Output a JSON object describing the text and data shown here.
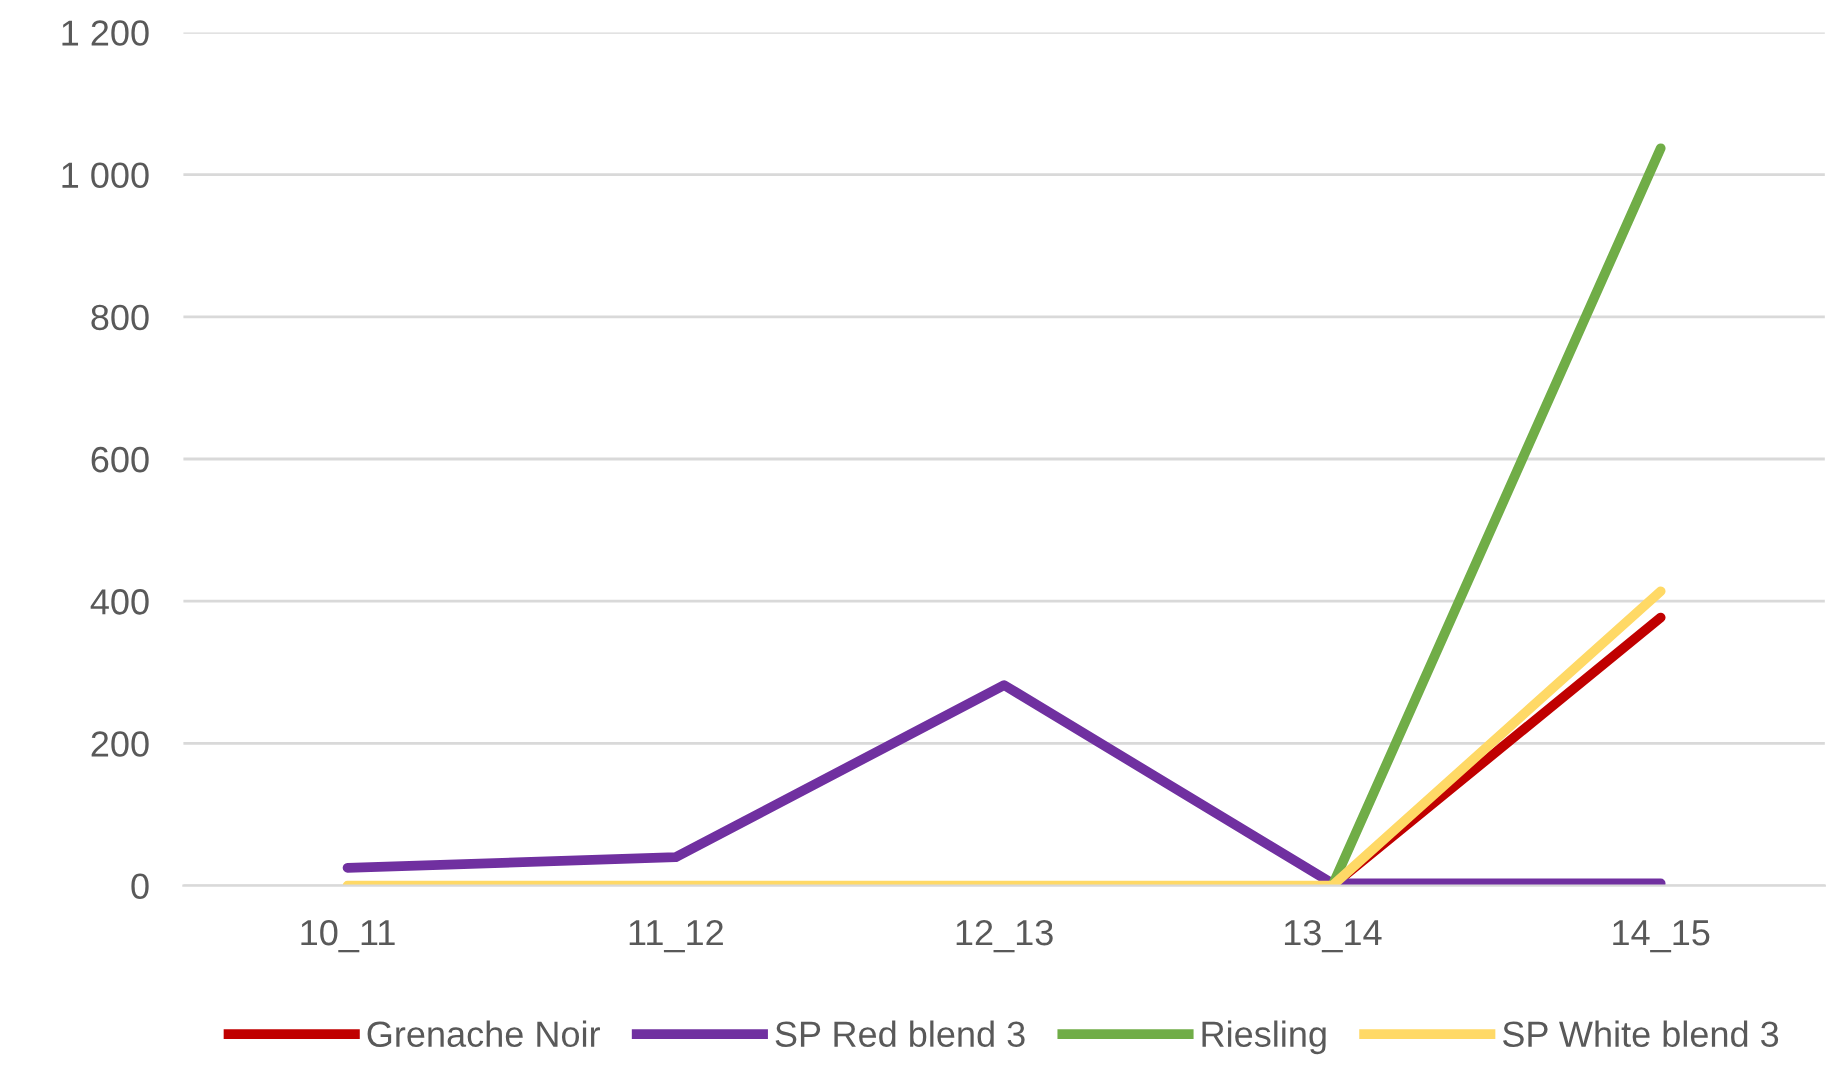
{
  "chart_data": {
    "type": "line",
    "categories": [
      "10_11",
      "11_12",
      "12_13",
      "13_14",
      "14_15"
    ],
    "series": [
      {
        "name": "Grenache Noir",
        "color": "#c00000",
        "values": [
          null,
          null,
          null,
          0,
          377
        ]
      },
      {
        "name": "SP Red blend 3",
        "color": "#7030a0",
        "values": [
          25,
          40,
          282,
          3,
          3
        ]
      },
      {
        "name": "Riesling",
        "color": "#70ad47",
        "values": [
          null,
          null,
          null,
          0,
          1037
        ]
      },
      {
        "name": "SP White blend 3",
        "color": "#ffd966",
        "values": [
          0,
          0,
          0,
          0,
          414
        ]
      }
    ],
    "ylim": [
      0,
      1200
    ],
    "yticks": [
      0,
      200,
      400,
      600,
      800,
      {
        "value": 1000,
        "label": "1 000"
      },
      {
        "value": 1200,
        "label": "1 200"
      }
    ],
    "grid": "y",
    "legend": "bottom",
    "marker": "none",
    "line_style": "solid"
  }
}
